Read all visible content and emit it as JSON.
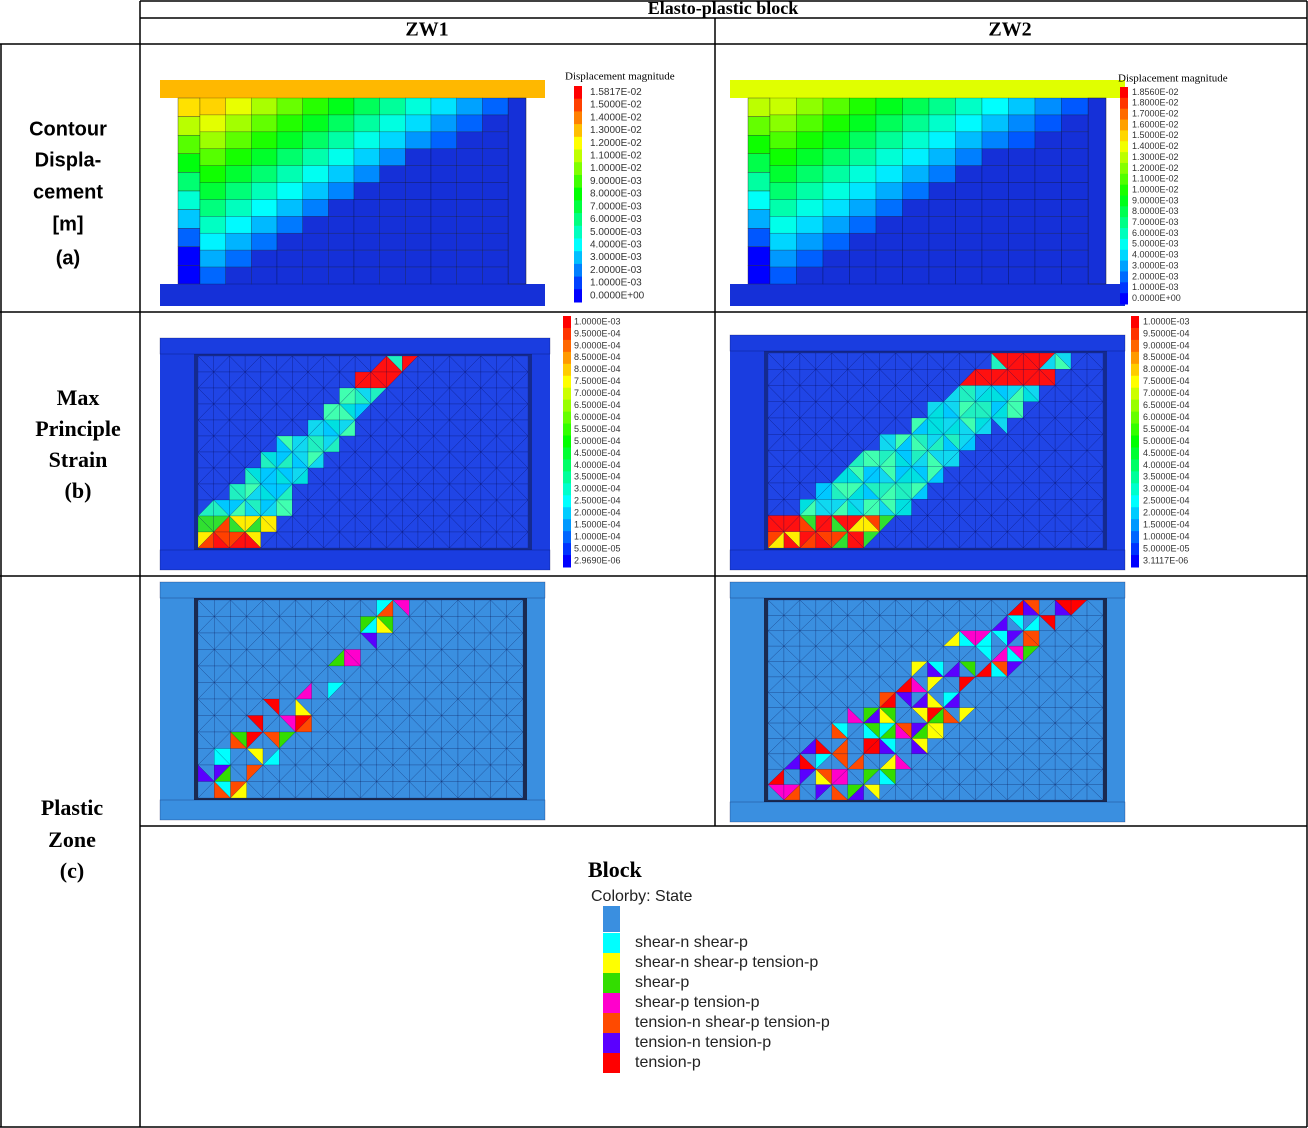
{
  "table": {
    "title": "Elasto-plastic block",
    "columns": [
      "ZW1",
      "ZW2"
    ],
    "rows": [
      {
        "label": [
          "Contour",
          "Displa-",
          "cement",
          "[m]",
          "(a)"
        ],
        "legends": [
          {
            "title": "Displacement magnitude",
            "values": [
              "1.5817E-02",
              "1.5000E-02",
              "1.4000E-02",
              "1.3000E-02",
              "1.2000E-02",
              "1.1000E-02",
              "1.0000E-02",
              "9.0000E-03",
              "8.0000E-03",
              "7.0000E-03",
              "6.0000E-03",
              "5.0000E-03",
              "4.0000E-03",
              "3.0000E-03",
              "2.0000E-03",
              "1.0000E-03",
              "0.0000E+00"
            ]
          },
          {
            "title": "Displacement magnitude",
            "values": [
              "1.8560E-02",
              "1.8000E-02",
              "1.7000E-02",
              "1.6000E-02",
              "1.5000E-02",
              "1.4000E-02",
              "1.3000E-02",
              "1.2000E-02",
              "1.1000E-02",
              "1.0000E-02",
              "9.0000E-03",
              "8.0000E-03",
              "7.0000E-03",
              "6.0000E-03",
              "5.0000E-03",
              "4.0000E-03",
              "3.0000E-03",
              "2.0000E-03",
              "1.0000E-03",
              "0.0000E+00"
            ]
          }
        ]
      },
      {
        "label": [
          "Max",
          "Principle",
          "Strain",
          "(b)"
        ],
        "legends": [
          {
            "values": [
              "1.0000E-03",
              "9.5000E-04",
              "9.0000E-04",
              "8.5000E-04",
              "8.0000E-04",
              "7.5000E-04",
              "7.0000E-04",
              "6.5000E-04",
              "6.0000E-04",
              "5.5000E-04",
              "5.0000E-04",
              "4.5000E-04",
              "4.0000E-04",
              "3.5000E-04",
              "3.0000E-04",
              "2.5000E-04",
              "2.0000E-04",
              "1.5000E-04",
              "1.0000E-04",
              "5.0000E-05",
              "2.9690E-06"
            ]
          },
          {
            "values": [
              "1.0000E-03",
              "9.5000E-04",
              "9.0000E-04",
              "8.5000E-04",
              "8.0000E-04",
              "7.5000E-04",
              "7.0000E-04",
              "6.5000E-04",
              "6.0000E-04",
              "5.5000E-04",
              "5.0000E-04",
              "4.5000E-04",
              "4.0000E-04",
              "3.5000E-04",
              "3.0000E-04",
              "2.5000E-04",
              "2.0000E-04",
              "1.5000E-04",
              "1.0000E-04",
              "5.0000E-05",
              "3.1117E-06"
            ]
          }
        ]
      },
      {
        "label": [
          "Plastic",
          "Zone",
          "(c)"
        ]
      }
    ],
    "state_legend": {
      "title": "Block",
      "subtitle": "Colorby: State",
      "items": [
        {
          "name": "shear-n shear-p",
          "color": "#00ffff"
        },
        {
          "name": "shear-n shear-p tension-p",
          "color": "#ffff00"
        },
        {
          "name": "shear-p",
          "color": "#33dd00"
        },
        {
          "name": "shear-p tension-p",
          "color": "#ff00cc"
        },
        {
          "name": "tension-n shear-p tension-p",
          "color": "#ff4a00"
        },
        {
          "name": "tension-n tension-p",
          "color": "#5a00ff"
        },
        {
          "name": "tension-p",
          "color": "#ff0000"
        }
      ]
    }
  }
}
